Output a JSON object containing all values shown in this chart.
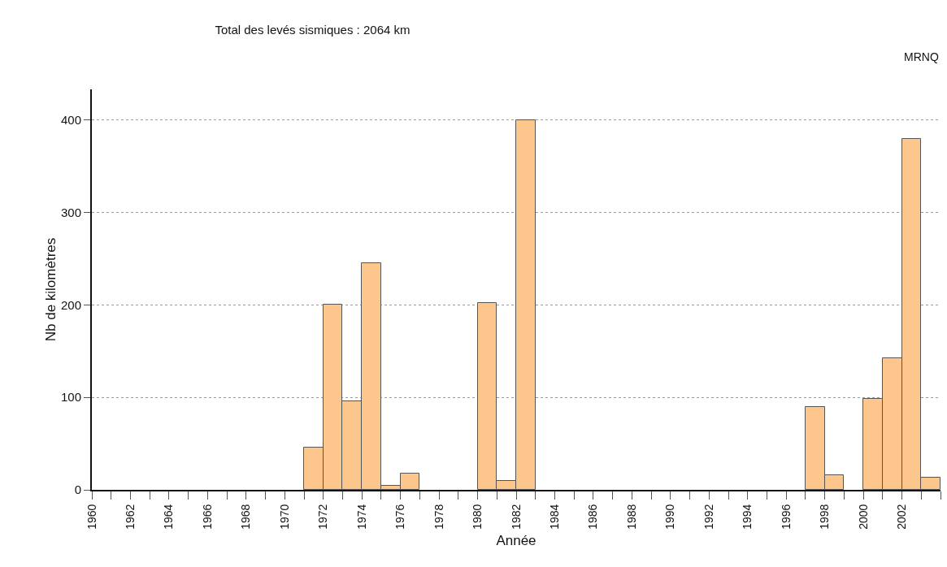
{
  "chart_data": {
    "type": "histogram",
    "title": "Total des levés sismiques : 2064 km",
    "xlabel": "Année",
    "ylabel": "Nb de kilomètres",
    "bins": [
      1960,
      1961,
      1962,
      1963,
      1964,
      1965,
      1966,
      1967,
      1968,
      1969,
      1970,
      1971,
      1972,
      1973,
      1974,
      1975,
      1976,
      1977,
      1978,
      1979,
      1980,
      1981,
      1982,
      1983,
      1984,
      1985,
      1986,
      1987,
      1988,
      1989,
      1990,
      1991,
      1992,
      1993,
      1994,
      1995,
      1996,
      1997,
      1998,
      1999,
      2000,
      2001,
      2002,
      2003,
      2004
    ],
    "values": [
      0,
      0,
      0,
      0,
      0,
      0,
      0,
      0,
      0,
      0,
      0,
      46,
      200,
      96,
      245,
      4,
      18,
      0,
      0,
      0,
      202,
      10,
      400,
      0,
      0,
      0,
      0,
      0,
      0,
      0,
      0,
      0,
      0,
      0,
      0,
      0,
      0,
      90,
      16,
      0,
      98,
      142,
      379,
      13
    ],
    "color": "#fdc68c",
    "xlim": [
      1960,
      2004
    ],
    "xticks": [
      1960,
      {
        "value": 1961,
        "label": null
      },
      1962,
      {
        "value": 1963,
        "label": null
      },
      1964,
      {
        "value": 1965,
        "label": null
      },
      1966,
      {
        "value": 1967,
        "label": null
      },
      1968,
      {
        "value": 1969,
        "label": null
      },
      1970,
      {
        "value": 1971,
        "label": null
      },
      1972,
      {
        "value": 1973,
        "label": null
      },
      1974,
      {
        "value": 1975,
        "label": null
      },
      1976,
      {
        "value": 1977,
        "label": null
      },
      1978,
      {
        "value": 1979,
        "label": null
      },
      1980,
      {
        "value": 1981,
        "label": null
      },
      1982,
      {
        "value": 1983,
        "label": null
      },
      1984,
      {
        "value": 1985,
        "label": null
      },
      1986,
      {
        "value": 1987,
        "label": null
      },
      1988,
      {
        "value": 1989,
        "label": null
      },
      1990,
      {
        "value": 1991,
        "label": null
      },
      1992,
      {
        "value": 1993,
        "label": null
      },
      1994,
      {
        "value": 1995,
        "label": null
      },
      1996,
      {
        "value": 1997,
        "label": null
      },
      1998,
      {
        "value": 1999,
        "label": null
      },
      2000,
      {
        "value": 2001,
        "label": null
      },
      2002,
      {
        "value": 2003,
        "label": null
      },
      {
        "value": 2004,
        "label": null
      }
    ],
    "ylim": [
      0,
      433
    ],
    "yticks": [
      0,
      100,
      200,
      300,
      400
    ],
    "grid": "y",
    "annotations": [
      "MRNQ"
    ]
  }
}
